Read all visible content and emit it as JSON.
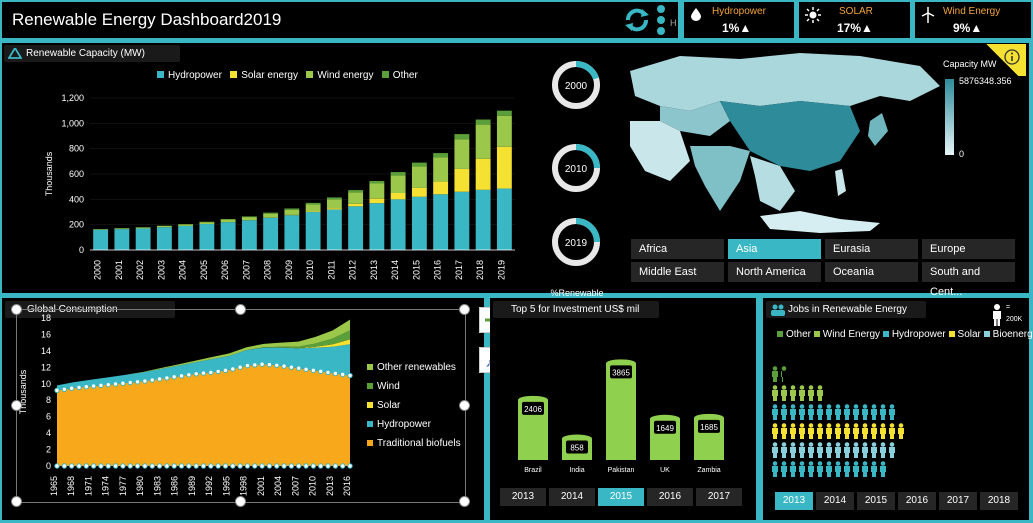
{
  "header": {
    "title": "Renewable Energy Dashboard2019",
    "refresh_icon": "refresh-icon",
    "dots_icon": "vertical-dots-icon",
    "stub_letter": "H"
  },
  "kpis": [
    {
      "label": "Hydropower",
      "value": "1%▲",
      "icon": "droplet-icon"
    },
    {
      "label": "SOLAR",
      "value": "17%▲",
      "icon": "sun-icon"
    },
    {
      "label": "Wind Energy",
      "value": "9%▲",
      "icon": "wind-turbine-icon"
    }
  ],
  "capacity": {
    "title": "Renewable Capacity (MW)",
    "legend": [
      "Hydropower",
      "Solar energy",
      "Wind energy",
      "Other"
    ],
    "colors": {
      "hydro": "#3ab7c4",
      "solar": "#f5e132",
      "wind": "#9bc84a",
      "other": "#5a9f39"
    },
    "ylabel": "Thousands"
  },
  "donuts": {
    "years": [
      "2000",
      "2010",
      "2019"
    ],
    "percentages": [
      0.2,
      0.25,
      0.25
    ],
    "caption": "%Renewable"
  },
  "map": {
    "legend_title": "Capacity MW",
    "legend_max": "5876348.356",
    "legend_min": "0",
    "regions": [
      "Africa",
      "Asia",
      "Eurasia",
      "Europe",
      "Middle East",
      "North America",
      "Oceania",
      "South and Cent..."
    ],
    "selected_region": "Asia",
    "info_icon": "info-icon"
  },
  "consumption": {
    "title": "Global Consumption",
    "ylabel": "Thousands",
    "legend": [
      "Other renewables",
      "Wind",
      "Solar",
      "Hydropower",
      "Traditional biofuels"
    ],
    "legend_colors": [
      "#9bc84a",
      "#5a9f39",
      "#f5e132",
      "#3ab7c4",
      "#f7a81b"
    ],
    "add_icon": "plus-icon",
    "brush_icon": "brush-icon"
  },
  "investment": {
    "title": "Top 5 for Investment US$ mil",
    "years": [
      "2013",
      "2014",
      "2015",
      "2016",
      "2017"
    ],
    "selected_year": "2015"
  },
  "jobs": {
    "title": "Jobs in Renewable Energy",
    "legend": [
      "Other",
      "Wind Energy",
      "Hydropower",
      "Solar",
      "Bioenergy"
    ],
    "legend_colors": [
      "#5a9f39",
      "#9bc84a",
      "#3ab7c4",
      "#f5e132",
      "#8ad0dc"
    ],
    "scale_label": "200K",
    "scale_eq": "=",
    "years": [
      "2013",
      "2014",
      "2015",
      "2016",
      "2017",
      "2018"
    ],
    "selected_year": "2013",
    "rows": [
      {
        "color": "#5a9f39",
        "count": 1.3
      },
      {
        "color": "#9bc84a",
        "count": 6
      },
      {
        "color": "#3ab7c4",
        "count": 14
      },
      {
        "color": "#f5e132",
        "count": 15
      },
      {
        "color": "#8ad0dc",
        "count": 14
      },
      {
        "color": "#3ab7c4",
        "count": 13
      }
    ]
  },
  "chart_data": [
    {
      "type": "bar",
      "title": "Renewable Capacity (MW)",
      "ylabel": "Thousands",
      "ylim": [
        0,
        1200
      ],
      "yticks": [
        "0",
        "200",
        "400",
        "600",
        "800",
        "1,000",
        "1,200"
      ],
      "categories": [
        "2000",
        "2001",
        "2002",
        "2003",
        "2004",
        "2005",
        "2006",
        "2007",
        "2008",
        "2009",
        "2010",
        "2011",
        "2012",
        "2013",
        "2014",
        "2015",
        "2016",
        "2017",
        "2018",
        "2019"
      ],
      "series": [
        {
          "name": "Hydropower",
          "values": [
            160,
            165,
            170,
            180,
            190,
            205,
            220,
            235,
            255,
            275,
            300,
            320,
            345,
            370,
            400,
            420,
            440,
            460,
            475,
            485
          ]
        },
        {
          "name": "Solar energy",
          "values": [
            0,
            0,
            0,
            0,
            0,
            0,
            0,
            0,
            2,
            3,
            5,
            10,
            20,
            35,
            50,
            70,
            100,
            180,
            245,
            330
          ]
        },
        {
          "name": "Wind energy",
          "values": [
            5,
            6,
            8,
            10,
            12,
            15,
            20,
            25,
            30,
            40,
            55,
            70,
            90,
            120,
            140,
            170,
            190,
            235,
            270,
            245
          ]
        },
        {
          "name": "Other",
          "values": [
            1,
            1,
            1,
            2,
            2,
            3,
            5,
            5,
            8,
            10,
            12,
            15,
            18,
            20,
            25,
            30,
            35,
            40,
            40,
            40
          ]
        }
      ],
      "legend": "top"
    },
    {
      "type": "area",
      "title": "Global Consumption",
      "ylabel": "Thousands",
      "ylim": [
        0,
        18
      ],
      "yticks": [
        "0",
        "2",
        "4",
        "6",
        "8",
        "10",
        "12",
        "14",
        "16",
        "18"
      ],
      "x": [
        "1965",
        "1968",
        "1971",
        "1974",
        "1977",
        "1980",
        "1983",
        "1986",
        "1989",
        "1992",
        "1995",
        "1998",
        "2001",
        "2004",
        "2007",
        "2010",
        "2013",
        "2016"
      ],
      "series": [
        {
          "name": "Traditional biofuels",
          "values": [
            9.2,
            9.5,
            9.7,
            9.9,
            10.1,
            10.3,
            10.6,
            10.9,
            11.2,
            11.4,
            11.7,
            12.2,
            12.4,
            12.2,
            11.9,
            11.6,
            11.3,
            11.0
          ]
        },
        {
          "name": "Hydropower",
          "values": [
            0.6,
            0.7,
            0.8,
            0.9,
            1.0,
            1.1,
            1.2,
            1.3,
            1.4,
            1.6,
            1.7,
            1.9,
            2.0,
            2.2,
            2.4,
            2.8,
            3.2,
            3.8
          ]
        },
        {
          "name": "Solar",
          "values": [
            0,
            0,
            0,
            0,
            0,
            0,
            0,
            0,
            0,
            0,
            0,
            0,
            0,
            0,
            0.02,
            0.1,
            0.3,
            0.6
          ]
        },
        {
          "name": "Wind",
          "values": [
            0,
            0,
            0,
            0,
            0,
            0,
            0,
            0,
            0,
            0,
            0,
            0,
            0.05,
            0.1,
            0.2,
            0.4,
            0.7,
            1.1
          ]
        },
        {
          "name": "Other renewables",
          "values": [
            0,
            0,
            0,
            0,
            0,
            0.05,
            0.1,
            0.15,
            0.2,
            0.25,
            0.3,
            0.35,
            0.4,
            0.5,
            0.6,
            0.8,
            1.0,
            1.3
          ]
        }
      ],
      "legend": "right"
    },
    {
      "type": "bar",
      "title": "Top 5 for Investment US$ mil",
      "categories": [
        "Brazil",
        "India",
        "Pakistan",
        "UK",
        "Zambia"
      ],
      "values": [
        2406,
        858,
        3865,
        1649,
        1685
      ],
      "value_labels": [
        "2406",
        "858",
        "3865",
        "1649",
        "1685"
      ]
    }
  ]
}
